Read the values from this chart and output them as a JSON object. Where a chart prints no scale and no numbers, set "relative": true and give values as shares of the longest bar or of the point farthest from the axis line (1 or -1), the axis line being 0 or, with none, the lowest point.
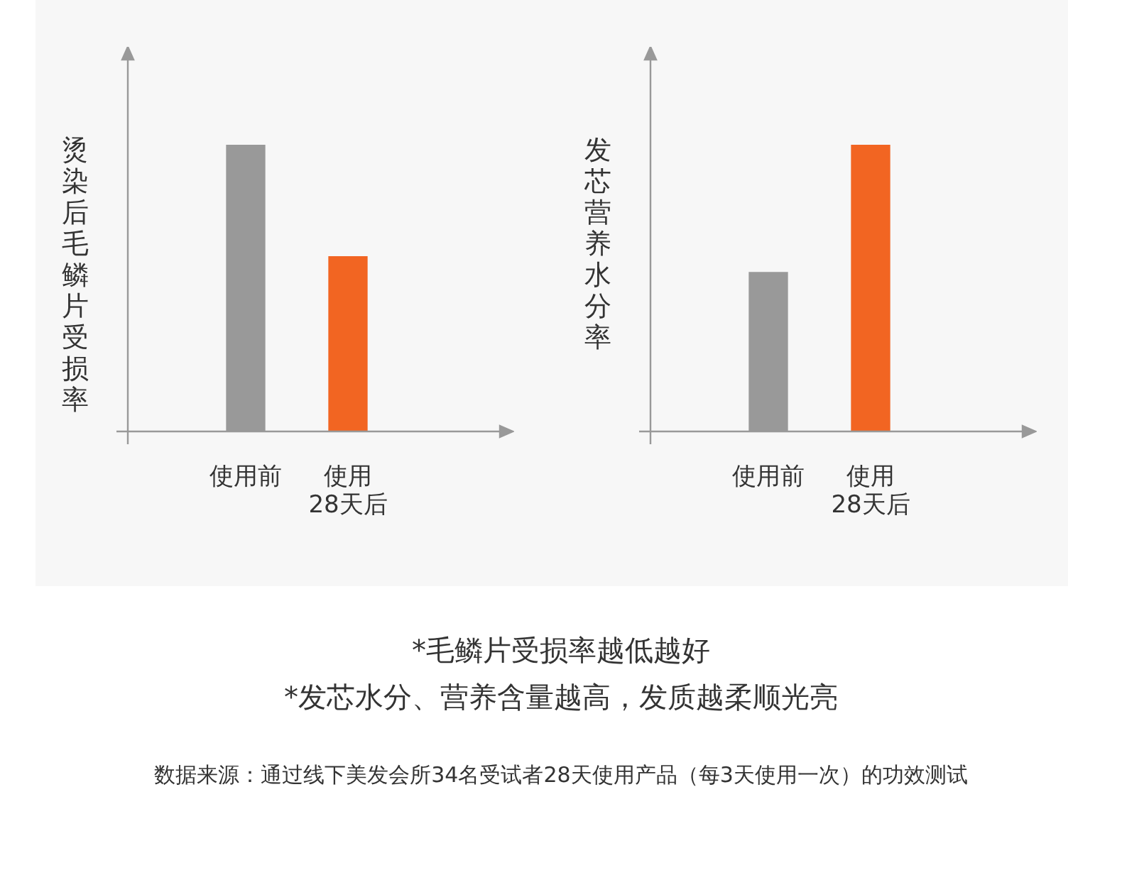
{
  "chart_data": [
    {
      "type": "bar",
      "relative": true,
      "ylabel": "烫染后毛鳞片受损率",
      "categories": [
        "使用前",
        "使用\n28天后"
      ],
      "values": [
        1,
        0.61
      ],
      "colors": [
        "#999999",
        "#f26522"
      ],
      "grid": false,
      "legend": false
    },
    {
      "type": "bar",
      "relative": true,
      "ylabel": "发芯营养水分率",
      "categories": [
        "使用前",
        "使用\n28天后"
      ],
      "values": [
        0.555,
        1
      ],
      "colors": [
        "#999999",
        "#f26522"
      ],
      "grid": false,
      "legend": false
    },
    {
      "type": "other",
      "annotations": [
        "*毛鳞片受损率越低越好",
        "*发芯水分、营养含量越高，发质越柔顺光亮",
        "数据来源：通过线下美发会所34名受试者28天使用产品（每3天使用一次）的功效测试"
      ]
    }
  ]
}
